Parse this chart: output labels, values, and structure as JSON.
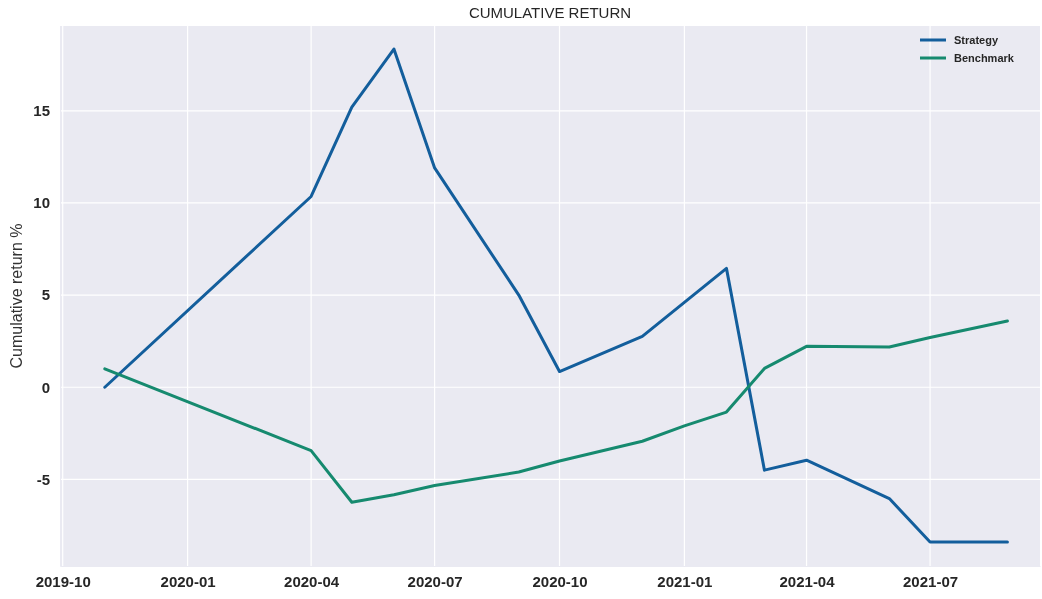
{
  "chart_data": {
    "type": "line",
    "title": "CUMULATIVE RETURN",
    "ylabel": "Cumulative return %",
    "xlim": [
      "2019-09-29",
      "2021-09-20"
    ],
    "xticks": [
      {
        "value": "2019-10-01",
        "label": "2019-10"
      },
      {
        "value": "2020-01-01",
        "label": "2020-01"
      },
      {
        "value": "2020-04-01",
        "label": "2020-04"
      },
      {
        "value": "2020-07-01",
        "label": "2020-07"
      },
      {
        "value": "2020-10-01",
        "label": "2020-10"
      },
      {
        "value": "2021-01-01",
        "label": "2021-01"
      },
      {
        "value": "2021-04-01",
        "label": "2021-04"
      },
      {
        "value": "2021-07-01",
        "label": "2021-07"
      }
    ],
    "ylim": [
      -9.7,
      19.6
    ],
    "yticks": [
      -5,
      0,
      5,
      10,
      15
    ],
    "grid": true,
    "legend": "top right",
    "line_style": "solid",
    "series": [
      {
        "name": "Strategy",
        "color": "#135e9c",
        "x": [
          "2019-11-01",
          "2020-04-01",
          "2020-05-01",
          "2020-06-01",
          "2020-07-01",
          "2020-09-01",
          "2020-10-01",
          "2020-12-01",
          "2021-02-01",
          "2021-03-01",
          "2021-04-01",
          "2021-06-01",
          "2021-07-01",
          "2021-08-27"
        ],
        "values": [
          0,
          10.35,
          15.2,
          18.35,
          11.9,
          5.0,
          0.85,
          2.76,
          6.45,
          -4.5,
          -3.96,
          -6.04,
          -8.4,
          -8.4
        ]
      },
      {
        "name": "Benchmark",
        "color": "#168a6f",
        "x": [
          "2019-11-01",
          "2020-04-01",
          "2020-05-01",
          "2020-06-01",
          "2020-07-01",
          "2020-09-01",
          "2020-10-01",
          "2020-12-01",
          "2021-01-01",
          "2021-02-01",
          "2021-03-01",
          "2021-04-01",
          "2021-06-01",
          "2021-07-01",
          "2021-08-27"
        ],
        "values": [
          1.0,
          -3.44,
          -6.24,
          -5.83,
          -5.33,
          -4.6,
          -4.0,
          -2.93,
          -2.1,
          -1.35,
          1.02,
          2.22,
          2.18,
          2.7,
          3.59
        ]
      }
    ]
  }
}
